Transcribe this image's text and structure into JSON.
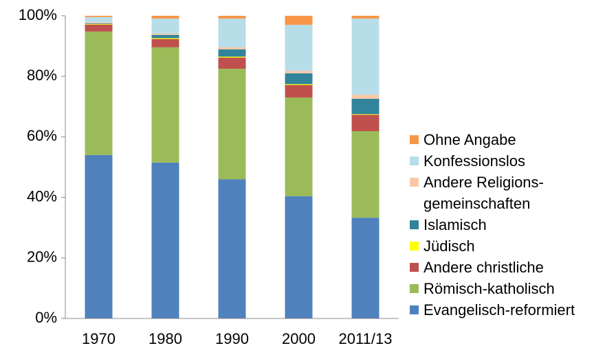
{
  "chart_data": {
    "type": "stacked_bar",
    "categories": [
      "1970",
      "1980",
      "1990",
      "2000",
      "2011/13"
    ],
    "series": [
      {
        "name": "Evangelisch-reformiert",
        "color": "#4f81bd",
        "values": [
          54.0,
          51.5,
          46.0,
          40.4,
          33.3
        ]
      },
      {
        "name": "Römisch-katholisch",
        "color": "#9bbb59",
        "values": [
          40.8,
          38.1,
          36.5,
          32.6,
          28.6
        ]
      },
      {
        "name": "Andere christliche",
        "color": "#c0504d",
        "values": [
          2.3,
          2.7,
          3.7,
          4.1,
          5.4
        ]
      },
      {
        "name": "Jüdisch",
        "color": "#ffff00",
        "values": [
          0.2,
          0.3,
          0.3,
          0.3,
          0.2
        ]
      },
      {
        "name": "Islamisch",
        "color": "#31849b",
        "values": [
          0.2,
          1.1,
          2.4,
          3.6,
          5.1
        ]
      },
      {
        "name": "Andere Religions-gemeinschaften",
        "color": "#fac8a8",
        "values": [
          0.3,
          0.4,
          0.7,
          0.8,
          1.3
        ]
      },
      {
        "name": "Konfessionslos",
        "color": "#b7dde8",
        "values": [
          1.8,
          5.0,
          9.5,
          15.2,
          25.2
        ]
      },
      {
        "name": "Ohne Angabe",
        "color": "#f79646",
        "values": [
          0.4,
          0.9,
          0.9,
          3.0,
          0.9
        ]
      }
    ],
    "ylim": [
      0,
      100
    ],
    "yticks": [
      {
        "value": 0,
        "label": "0%"
      },
      {
        "value": 20,
        "label": "20%"
      },
      {
        "value": 40,
        "label": "40%"
      },
      {
        "value": 60,
        "label": "60%"
      },
      {
        "value": 80,
        "label": "80%"
      },
      {
        "value": 100,
        "label": "100%"
      }
    ],
    "legend": "right"
  }
}
